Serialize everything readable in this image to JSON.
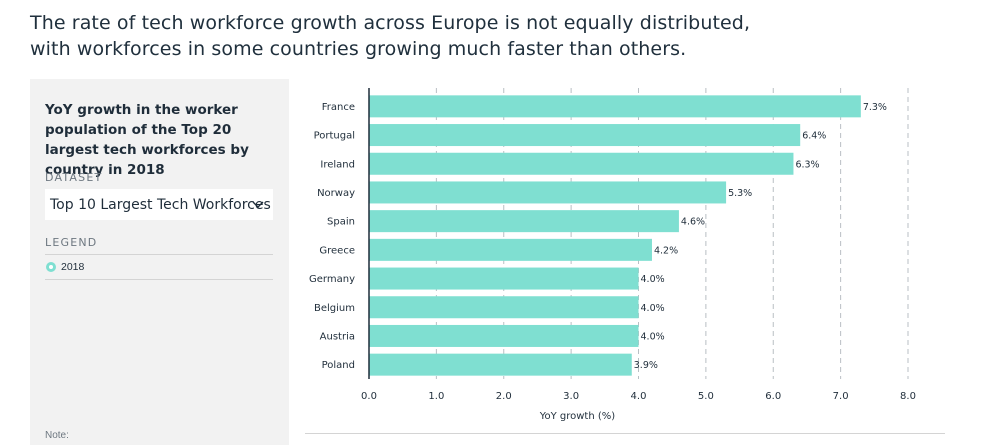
{
  "headline": "The rate of tech workforce growth across Europe is not equally distributed, with workforces in some countries growing much faster than others.",
  "panel": {
    "title": "YoY growth in the worker population of the Top 20 largest tech workforces by country in 2018",
    "dataset_label": "DATASET",
    "dataset_value": "Top 10 Largest Tech Workforces",
    "legend_label": "LEGEND",
    "legend_item": "2018",
    "note_label": "Note:"
  },
  "colors": {
    "bar": "#7fdfd1",
    "accent_text": "#1f2d3a"
  },
  "chart_data": {
    "type": "bar",
    "orientation": "horizontal",
    "categories": [
      "France",
      "Portugal",
      "Ireland",
      "Norway",
      "Spain",
      "Greece",
      "Germany",
      "Belgium",
      "Austria",
      "Poland"
    ],
    "series": [
      {
        "name": "2018",
        "values": [
          7.3,
          6.4,
          6.3,
          5.3,
          4.6,
          4.2,
          4.0,
          4.0,
          4.0,
          3.9
        ]
      }
    ],
    "data_labels": [
      "7.3%",
      "6.4%",
      "6.3%",
      "5.3%",
      "4.6%",
      "4.2%",
      "4.0%",
      "4.0%",
      "4.0%",
      "3.9%"
    ],
    "x_ticks": [
      "0.0",
      "1.0",
      "2.0",
      "3.0",
      "4.0",
      "5.0",
      "6.0",
      "7.0",
      "8.0"
    ],
    "xlim": [
      0,
      8
    ],
    "xlabel": "YoY growth (%)",
    "grid": "vertical dashed"
  }
}
